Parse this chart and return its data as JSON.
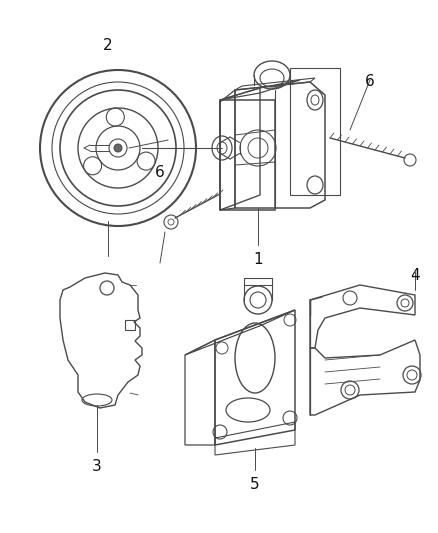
{
  "background_color": "#ffffff",
  "line_color": "#4a4a4a",
  "label_color": "#111111",
  "fig_width": 4.38,
  "fig_height": 5.33,
  "dpi": 100,
  "label_fontsize": 10,
  "line_width": 1.0
}
